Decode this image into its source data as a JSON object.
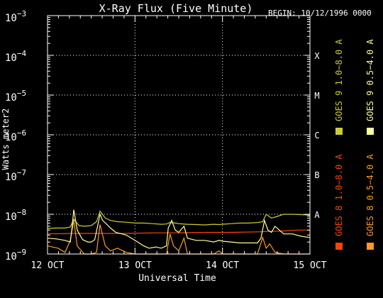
{
  "chart_data": {
    "type": "line",
    "title": "X-Ray Flux (Five Minute)",
    "begin_label": "BEGIN: 10/12/1996 0000",
    "xlabel": "Universal Time",
    "ylabel": "Watts meter2",
    "x_ticks": [
      {
        "value": 0,
        "label": "12 OCT"
      },
      {
        "value": 1,
        "label": "13 OCT"
      },
      {
        "value": 2,
        "label": "14 OCT"
      },
      {
        "value": 3,
        "label": "15 OCT"
      }
    ],
    "xlim": [
      0,
      3
    ],
    "x_unit": "days from 12 OCT 00:00 UT",
    "y_scale": "log",
    "ylim": [
      1e-09,
      0.001
    ],
    "y_ticks": [
      {
        "exp": -3,
        "label": "10",
        "sup": "−3"
      },
      {
        "exp": -4,
        "label": "10",
        "sup": "−4"
      },
      {
        "exp": -5,
        "label": "10",
        "sup": "−5"
      },
      {
        "exp": -6,
        "label": "10",
        "sup": "−6"
      },
      {
        "exp": -7,
        "label": "10",
        "sup": "−7"
      },
      {
        "exp": -8,
        "label": "10",
        "sup": "−8"
      },
      {
        "exp": -9,
        "label": "10",
        "sup": "−9"
      }
    ],
    "flare_classes": [
      {
        "label": "X",
        "exp": -4
      },
      {
        "label": "M",
        "exp": -5
      },
      {
        "label": "C",
        "exp": -6
      },
      {
        "label": "B",
        "exp": -7
      },
      {
        "label": "A",
        "exp": -8
      }
    ],
    "grid": "dotted horizontal lines at each decade, dotted vertical lines at day boundaries",
    "legend_placement": "right, rotated vertical",
    "series": [
      {
        "name": "GOES 8 1.0−8.0 A",
        "color": "#ff4400",
        "x": [
          0,
          0.3,
          0.6,
          0.9,
          1.2,
          1.5,
          1.8,
          2.1,
          2.4,
          2.7,
          2.85,
          3.0
        ],
        "y": [
          3.2e-09,
          3.3e-09,
          3.3e-09,
          3.3e-09,
          3.4e-09,
          3.4e-09,
          3.5e-09,
          3.5e-09,
          3.6e-09,
          3.8e-09,
          4e-09,
          4e-09
        ]
      },
      {
        "name": "GOES 8 0.5−4.0 A",
        "color": "#ff9922",
        "x": [
          0,
          0.12,
          0.2,
          0.26,
          0.3,
          0.34,
          0.42,
          0.5,
          0.56,
          0.6,
          0.66,
          0.72,
          0.8,
          0.9,
          1.0,
          1.1,
          1.2,
          1.3,
          1.36,
          1.4,
          1.44,
          1.5,
          1.56,
          1.6,
          1.7,
          1.8,
          1.9,
          1.96,
          2.0,
          2.1,
          2.2,
          2.3,
          2.4,
          2.46,
          2.5,
          2.54,
          2.6,
          2.7,
          2.8,
          2.9,
          3.0
        ],
        "y": [
          1.6e-09,
          1.4e-09,
          1.1e-09,
          2.2e-09,
          7e-09,
          1.6e-09,
          1e-09,
          1e-09,
          1.1e-09,
          5.5e-09,
          1.6e-09,
          1.2e-09,
          1.4e-09,
          1.1e-09,
          1e-09,
          1e-09,
          1e-09,
          1e-09,
          1e-09,
          3.2e-09,
          1.6e-09,
          1.2e-09,
          2.5e-09,
          1e-09,
          1e-09,
          1e-09,
          1e-09,
          1.2e-09,
          1e-09,
          1e-09,
          1e-09,
          1e-09,
          1e-09,
          2.6e-09,
          1.4e-09,
          1.8e-09,
          1.1e-09,
          1e-09,
          1e-09,
          1e-09,
          1e-09
        ]
      },
      {
        "name": "GOES 9 1.0−8.0 A",
        "color": "#cccc33",
        "x": [
          0,
          0.1,
          0.2,
          0.26,
          0.3,
          0.36,
          0.42,
          0.5,
          0.56,
          0.6,
          0.66,
          0.72,
          0.8,
          0.9,
          1.0,
          1.1,
          1.2,
          1.3,
          1.36,
          1.4,
          1.46,
          1.5,
          1.6,
          1.7,
          1.8,
          1.9,
          1.96,
          2.0,
          2.1,
          2.2,
          2.3,
          2.4,
          2.46,
          2.5,
          2.56,
          2.6,
          2.7,
          2.8,
          2.9,
          3.0
        ],
        "y": [
          4.4e-09,
          4.5e-09,
          4.5e-09,
          4.8e-09,
          7.5e-09,
          5.2e-09,
          5e-09,
          5.2e-09,
          6.5e-09,
          1.2e-08,
          8e-09,
          7e-09,
          6.5e-09,
          6.3e-09,
          6e-09,
          6e-09,
          5.8e-09,
          5.6e-09,
          5.7e-09,
          6.2e-09,
          6e-09,
          5.8e-09,
          5.6e-09,
          5.5e-09,
          5.4e-09,
          5.6e-09,
          5.5e-09,
          5.6e-09,
          5.8e-09,
          6e-09,
          6e-09,
          6.2e-09,
          6.5e-09,
          1e-08,
          8e-09,
          8.5e-09,
          1e-08,
          1e-08,
          9.8e-09,
          9.5e-09
        ]
      },
      {
        "name": "GOES 9 0.5−4.0 A",
        "color": "#ffff99",
        "x": [
          0,
          0.1,
          0.2,
          0.26,
          0.28,
          0.3,
          0.34,
          0.4,
          0.46,
          0.5,
          0.54,
          0.58,
          0.6,
          0.63,
          0.68,
          0.72,
          0.78,
          0.85,
          0.9,
          1.0,
          1.1,
          1.16,
          1.24,
          1.3,
          1.36,
          1.38,
          1.42,
          1.46,
          1.5,
          1.56,
          1.6,
          1.7,
          1.8,
          1.9,
          1.96,
          2.0,
          2.1,
          2.2,
          2.3,
          2.4,
          2.44,
          2.48,
          2.52,
          2.56,
          2.6,
          2.7,
          2.8,
          2.9,
          3.0
        ],
        "y": [
          2.5e-09,
          2.4e-09,
          2.2e-09,
          2e-09,
          4.5e-09,
          1.3e-08,
          4e-09,
          2.3e-09,
          2e-09,
          2e-09,
          2.3e-09,
          6e-09,
          1e-08,
          7e-09,
          5.5e-09,
          4.5e-09,
          3.5e-09,
          3.2e-09,
          3e-09,
          2.2e-09,
          1.6e-09,
          1.4e-09,
          1.5e-09,
          1.4e-09,
          1.6e-09,
          4.5e-09,
          7e-09,
          4e-09,
          3.5e-09,
          5e-09,
          2.5e-09,
          2.2e-09,
          2.2e-09,
          2e-09,
          2.2e-09,
          2.1e-09,
          2e-09,
          1.9e-09,
          1.9e-09,
          1.9e-09,
          2.5e-09,
          7e-09,
          4e-09,
          3.5e-09,
          5e-09,
          3.2e-09,
          3.2e-09,
          2.8e-09,
          2.6e-09
        ]
      }
    ]
  }
}
